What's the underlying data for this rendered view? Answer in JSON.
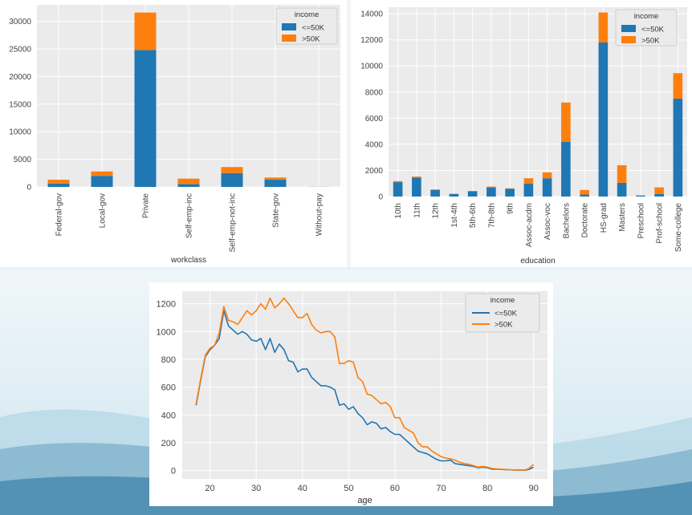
{
  "colors": {
    "le50k": "#1f77b4",
    "gt50k": "#ff7f0e",
    "plot_bg": "#ebebeb",
    "grid": "#ffffff",
    "tick_text": "#444444",
    "slide_bg_top": "#ffffff",
    "slide_bg_wave": "#a8cfe0",
    "slide_bg_dark": "#3d7fa5"
  },
  "chart_data": [
    {
      "id": "workclass",
      "type": "bar",
      "stacked": true,
      "xlabel": "workclass",
      "ylabel": "",
      "ylim": [
        0,
        33000
      ],
      "yticks": [
        0,
        5000,
        10000,
        15000,
        20000,
        25000,
        30000
      ],
      "categories": [
        "Federal-gov",
        "Local-gov",
        "Private",
        "Self-emp-inc",
        "Self-emp-not-inc",
        "State-gov",
        "Without-pay"
      ],
      "series": [
        {
          "name": "<=50K",
          "values": [
            600,
            2000,
            24800,
            500,
            2500,
            1300,
            20
          ]
        },
        {
          "name": ">50K",
          "values": [
            700,
            800,
            6800,
            1000,
            1100,
            400,
            2
          ]
        }
      ],
      "legend": {
        "title": "income",
        "position": "top-right"
      },
      "grid": true
    },
    {
      "id": "education",
      "type": "bar",
      "stacked": true,
      "xlabel": "education",
      "ylabel": "",
      "ylim": [
        0,
        14500
      ],
      "yticks": [
        0,
        2000,
        4000,
        6000,
        8000,
        10000,
        12000,
        14000
      ],
      "categories": [
        "10th",
        "11th",
        "12th",
        "1st-4th",
        "5th-6th",
        "7th-8th",
        "9th",
        "Assoc-acdm",
        "Assoc-voc",
        "Bachelors",
        "Doctorate",
        "HS-grad",
        "Masters",
        "Preschool",
        "Prof-school",
        "Some-college"
      ],
      "series": [
        {
          "name": "<=50K",
          "values": [
            1100,
            1450,
            500,
            200,
            400,
            700,
            600,
            1000,
            1400,
            4200,
            150,
            11800,
            1050,
            80,
            200,
            7500
          ]
        },
        {
          "name": ">50K",
          "values": [
            80,
            80,
            50,
            5,
            20,
            60,
            30,
            400,
            450,
            3000,
            350,
            2300,
            1350,
            2,
            500,
            1950
          ]
        }
      ],
      "legend": {
        "title": "income",
        "position": "top-right"
      },
      "grid": true
    },
    {
      "id": "age",
      "type": "line",
      "xlabel": "age",
      "ylabel": "",
      "xlim": [
        14,
        93
      ],
      "ylim": [
        -60,
        1290
      ],
      "xticks": [
        20,
        30,
        40,
        50,
        60,
        70,
        80,
        90
      ],
      "yticks": [
        0,
        200,
        400,
        600,
        800,
        1000,
        1200
      ],
      "x": [
        17,
        18,
        19,
        20,
        21,
        22,
        23,
        24,
        25,
        26,
        27,
        28,
        29,
        30,
        31,
        32,
        33,
        34,
        35,
        36,
        37,
        38,
        39,
        40,
        41,
        42,
        43,
        44,
        45,
        46,
        47,
        48,
        49,
        50,
        51,
        52,
        53,
        54,
        55,
        56,
        57,
        58,
        59,
        60,
        61,
        62,
        63,
        64,
        65,
        66,
        67,
        68,
        69,
        70,
        71,
        72,
        73,
        74,
        75,
        76,
        77,
        78,
        79,
        80,
        81,
        82,
        83,
        84,
        85,
        86,
        87,
        88,
        89,
        90
      ],
      "series": [
        {
          "name": "<=50K",
          "values": [
            470,
            650,
            820,
            870,
            900,
            950,
            1150,
            1040,
            1010,
            980,
            1000,
            980,
            940,
            930,
            950,
            870,
            950,
            850,
            910,
            870,
            790,
            780,
            710,
            730,
            730,
            670,
            640,
            610,
            610,
            600,
            580,
            470,
            480,
            440,
            460,
            410,
            380,
            330,
            350,
            340,
            300,
            310,
            280,
            260,
            260,
            230,
            200,
            170,
            140,
            130,
            120,
            100,
            80,
            70,
            70,
            75,
            50,
            45,
            40,
            35,
            30,
            20,
            25,
            20,
            10,
            10,
            8,
            6,
            5,
            3,
            4,
            2,
            8,
            25
          ]
        },
        {
          "name": ">50K",
          "values": [
            480,
            660,
            830,
            880,
            900,
            990,
            1180,
            1080,
            1070,
            1050,
            1100,
            1150,
            1120,
            1150,
            1200,
            1160,
            1240,
            1170,
            1200,
            1240,
            1200,
            1150,
            1100,
            1100,
            1130,
            1050,
            1010,
            990,
            1000,
            1000,
            960,
            770,
            770,
            790,
            780,
            670,
            640,
            550,
            540,
            510,
            480,
            490,
            460,
            380,
            380,
            310,
            290,
            270,
            200,
            170,
            170,
            140,
            120,
            100,
            90,
            85,
            75,
            60,
            50,
            45,
            35,
            25,
            30,
            25,
            15,
            12,
            10,
            8,
            6,
            4,
            5,
            3,
            15,
            45
          ]
        }
      ],
      "legend": {
        "title": "income",
        "position": "top-right"
      },
      "grid": true
    }
  ]
}
